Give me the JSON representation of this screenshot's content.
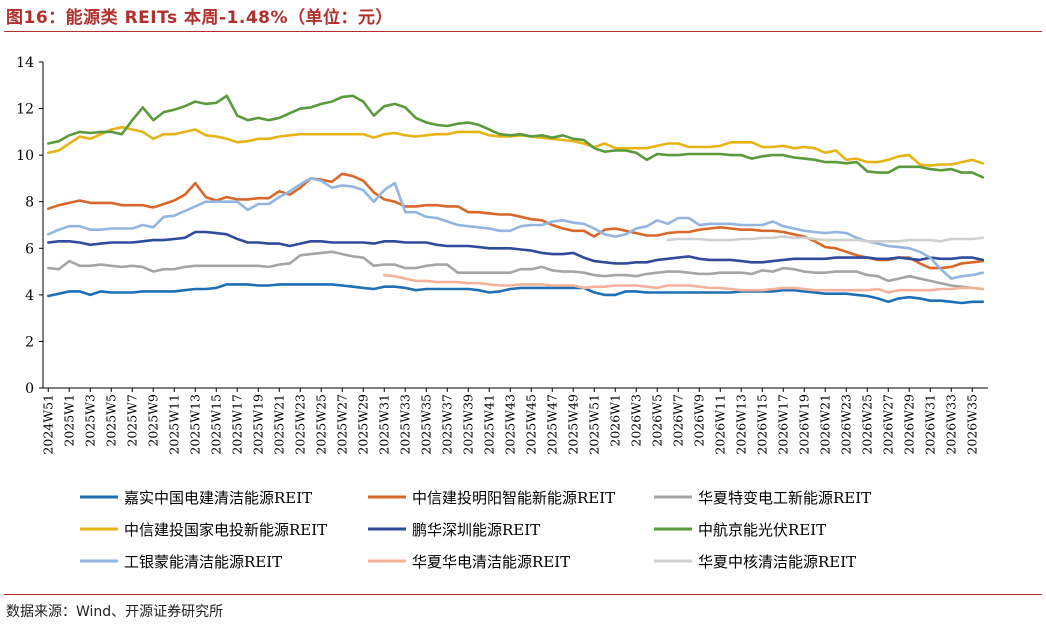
{
  "header": {
    "title": "图16：能源类 REITs 本周-1.48%（单位：元）"
  },
  "footer": {
    "source": "数据来源：Wind、开源证券研究所"
  },
  "chart_data": {
    "type": "line",
    "title": "",
    "xlabel": "",
    "ylabel": "",
    "ylim": [
      0,
      14
    ],
    "yticks": [
      0,
      2,
      4,
      6,
      8,
      10,
      12,
      14
    ],
    "grid": false,
    "legend_position": "bottom",
    "x": [
      "2024W51",
      "2024W52",
      "2025W1",
      "2025W2",
      "2025W3",
      "2025W4",
      "2025W5",
      "2025W6",
      "2025W7",
      "2025W8",
      "2025W9",
      "2025W10",
      "2025W11",
      "2025W12",
      "2025W13",
      "2025W14",
      "2025W15",
      "2025W16",
      "2025W17",
      "2025W18",
      "2025W19",
      "2025W20",
      "2025W21",
      "2025W22",
      "2025W23",
      "2025W24",
      "2025W25",
      "2025W26",
      "2025W27",
      "2025W28",
      "2025W29",
      "2025W30",
      "2025W31",
      "2025W32",
      "2025W33",
      "2025W34",
      "2025W35",
      "2025W36",
      "2025W37",
      "2025W38",
      "2025W39",
      "2025W40",
      "2025W41",
      "2025W42",
      "2025W43",
      "2025W44",
      "2025W45",
      "2025W46",
      "2025W47",
      "2025W48",
      "2025W49",
      "2025W50",
      "2025W51",
      "2025W52",
      "2026W1",
      "2026W2",
      "2026W3",
      "2026W4",
      "2026W5",
      "2026W6",
      "2026W7",
      "2026W8",
      "2026W9",
      "2026W10",
      "2026W11",
      "2026W12",
      "2026W13",
      "2026W14",
      "2026W15",
      "2026W16",
      "2026W17",
      "2026W18",
      "2026W19",
      "2026W20",
      "2026W21",
      "2026W22",
      "2026W23",
      "2026W24",
      "2026W25",
      "2026W26",
      "2026W27",
      "2026W28",
      "2026W29",
      "2026W30",
      "2026W31",
      "2026W32",
      "2026W33",
      "2026W34",
      "2026W35",
      "2026W36"
    ],
    "xtick_labels": [
      "2024W51",
      "2025W1",
      "2025W3",
      "2025W5",
      "2025W7",
      "2025W9",
      "2025W11",
      "2025W13",
      "2025W15",
      "2025W17",
      "2025W19",
      "2025W21",
      "2025W23",
      "2025W25",
      "2025W27",
      "2025W29",
      "2025W31",
      "2025W33",
      "2025W35",
      "2025W37",
      "2025W39",
      "2025W41",
      "2025W43",
      "2025W45",
      "2025W47",
      "2025W49",
      "2025W51",
      "2026W1",
      "2026W3",
      "2026W5",
      "2026W7",
      "2026W9",
      "2026W11",
      "2026W13",
      "2026W15",
      "2026W17",
      "2026W19",
      "2026W21",
      "2026W23",
      "2026W25",
      "2026W27",
      "2026W29",
      "2026W31",
      "2026W33",
      "2026W35"
    ],
    "series": [
      {
        "name": "嘉实中国电建清洁能源REIT",
        "color": "#1f6fb5",
        "values": [
          3.95,
          4.05,
          4.15,
          4.15,
          4.0,
          4.15,
          4.1,
          4.1,
          4.1,
          4.15,
          4.15,
          4.15,
          4.15,
          4.2,
          4.25,
          4.25,
          4.3,
          4.45,
          4.45,
          4.45,
          4.4,
          4.4,
          4.45,
          4.45,
          4.45,
          4.45,
          4.45,
          4.45,
          4.4,
          4.35,
          4.3,
          4.25,
          4.35,
          4.35,
          4.3,
          4.2,
          4.25,
          4.25,
          4.25,
          4.25,
          4.25,
          4.2,
          4.1,
          4.15,
          4.25,
          4.3,
          4.3,
          4.3,
          4.3,
          4.3,
          4.3,
          4.3,
          4.1,
          4.0,
          4.0,
          4.15,
          4.15,
          4.1,
          4.1,
          4.1,
          4.1,
          4.1,
          4.1,
          4.1,
          4.1,
          4.1,
          4.15,
          4.15,
          4.15,
          4.15,
          4.2,
          4.2,
          4.15,
          4.1,
          4.05,
          4.05,
          4.05,
          4.0,
          3.95,
          3.85,
          3.7,
          3.85,
          3.9,
          3.85,
          3.75,
          3.75,
          3.7,
          3.65,
          3.7,
          3.7
        ]
      },
      {
        "name": "中信建投明阳智能新能源REIT",
        "color": "#d9672a",
        "values": [
          7.7,
          7.85,
          7.95,
          8.05,
          7.95,
          7.95,
          7.95,
          7.85,
          7.85,
          7.85,
          7.75,
          7.9,
          8.05,
          8.3,
          8.8,
          8.2,
          8.05,
          8.2,
          8.1,
          8.1,
          8.15,
          8.15,
          8.45,
          8.3,
          8.6,
          9.0,
          8.95,
          8.85,
          9.2,
          9.1,
          8.9,
          8.4,
          8.1,
          8.0,
          7.8,
          7.8,
          7.85,
          7.85,
          7.8,
          7.8,
          7.55,
          7.55,
          7.5,
          7.45,
          7.45,
          7.35,
          7.25,
          7.2,
          7.0,
          6.85,
          6.75,
          6.75,
          6.5,
          6.8,
          6.85,
          6.75,
          6.65,
          6.55,
          6.55,
          6.65,
          6.7,
          6.7,
          6.8,
          6.85,
          6.9,
          6.85,
          6.8,
          6.8,
          6.75,
          6.75,
          6.7,
          6.6,
          6.5,
          6.3,
          6.05,
          6.0,
          5.85,
          5.7,
          5.6,
          5.5,
          5.5,
          5.6,
          5.6,
          5.35,
          5.15,
          5.15,
          5.2,
          5.35,
          5.4,
          5.45
        ]
      },
      {
        "name": "华夏特变电工新能源REIT",
        "color": "#a5a5a5",
        "values": [
          5.15,
          5.1,
          5.45,
          5.25,
          5.25,
          5.3,
          5.25,
          5.2,
          5.25,
          5.2,
          5.0,
          5.1,
          5.1,
          5.2,
          5.25,
          5.25,
          5.25,
          5.25,
          5.25,
          5.25,
          5.25,
          5.2,
          5.3,
          5.35,
          5.7,
          5.75,
          5.8,
          5.85,
          5.75,
          5.65,
          5.6,
          5.25,
          5.3,
          5.3,
          5.15,
          5.15,
          5.25,
          5.3,
          5.3,
          4.95,
          4.95,
          4.95,
          4.95,
          4.95,
          4.95,
          5.1,
          5.1,
          5.2,
          5.05,
          5.0,
          5.0,
          4.95,
          4.85,
          4.8,
          4.85,
          4.85,
          4.8,
          4.9,
          4.95,
          5.0,
          5.0,
          4.95,
          4.9,
          4.9,
          4.95,
          4.95,
          4.95,
          4.9,
          5.05,
          5.0,
          5.15,
          5.1,
          5.0,
          4.95,
          4.95,
          5.0,
          5.0,
          5.0,
          4.85,
          4.8,
          4.6,
          4.7,
          4.8,
          4.7,
          4.6,
          4.5,
          4.4,
          4.35,
          4.3,
          4.25
        ]
      },
      {
        "name": "中信建投国家电投新能源REIT",
        "color": "#e7b416",
        "values": [
          10.1,
          10.2,
          10.5,
          10.8,
          10.7,
          10.9,
          11.1,
          11.2,
          11.1,
          11.0,
          10.7,
          10.9,
          10.9,
          11.0,
          11.1,
          10.85,
          10.8,
          10.7,
          10.55,
          10.6,
          10.7,
          10.7,
          10.8,
          10.85,
          10.9,
          10.9,
          10.9,
          10.9,
          10.9,
          10.9,
          10.9,
          10.75,
          10.9,
          10.95,
          10.85,
          10.8,
          10.85,
          10.9,
          10.9,
          11.0,
          11.0,
          11.0,
          10.85,
          10.8,
          10.8,
          10.85,
          10.8,
          10.75,
          10.7,
          10.65,
          10.6,
          10.5,
          10.35,
          10.5,
          10.3,
          10.3,
          10.3,
          10.3,
          10.4,
          10.5,
          10.5,
          10.35,
          10.35,
          10.35,
          10.4,
          10.55,
          10.55,
          10.55,
          10.35,
          10.35,
          10.4,
          10.3,
          10.35,
          10.3,
          10.1,
          10.2,
          9.8,
          9.85,
          9.7,
          9.7,
          9.8,
          9.95,
          10.0,
          9.6,
          9.55,
          9.6,
          9.6,
          9.7,
          9.8,
          9.65
        ]
      },
      {
        "name": "鹏华深圳能源REIT",
        "color": "#2f4b9b",
        "values": [
          6.25,
          6.3,
          6.3,
          6.25,
          6.15,
          6.2,
          6.25,
          6.25,
          6.25,
          6.3,
          6.35,
          6.35,
          6.4,
          6.45,
          6.7,
          6.7,
          6.65,
          6.6,
          6.4,
          6.25,
          6.25,
          6.2,
          6.2,
          6.1,
          6.2,
          6.3,
          6.3,
          6.25,
          6.25,
          6.25,
          6.25,
          6.2,
          6.3,
          6.3,
          6.25,
          6.25,
          6.25,
          6.15,
          6.1,
          6.1,
          6.1,
          6.05,
          6.0,
          6.0,
          6.0,
          5.95,
          5.9,
          5.8,
          5.75,
          5.75,
          5.8,
          5.6,
          5.45,
          5.4,
          5.35,
          5.35,
          5.4,
          5.4,
          5.5,
          5.55,
          5.6,
          5.65,
          5.55,
          5.5,
          5.5,
          5.5,
          5.45,
          5.4,
          5.4,
          5.45,
          5.5,
          5.55,
          5.55,
          5.55,
          5.55,
          5.6,
          5.6,
          5.6,
          5.6,
          5.55,
          5.55,
          5.6,
          5.55,
          5.5,
          5.6,
          5.55,
          5.55,
          5.6,
          5.6,
          5.5
        ]
      },
      {
        "name": "中航京能光伏REIT",
        "color": "#5a9a3c",
        "values": [
          10.5,
          10.6,
          10.85,
          11.0,
          10.95,
          11.0,
          11.0,
          10.9,
          11.5,
          12.05,
          11.5,
          11.85,
          11.95,
          12.1,
          12.3,
          12.2,
          12.25,
          12.55,
          11.7,
          11.5,
          11.6,
          11.5,
          11.6,
          11.8,
          12.0,
          12.05,
          12.2,
          12.3,
          12.5,
          12.55,
          12.3,
          11.7,
          12.1,
          12.2,
          12.05,
          11.6,
          11.4,
          11.3,
          11.25,
          11.35,
          11.4,
          11.3,
          11.1,
          10.9,
          10.85,
          10.9,
          10.8,
          10.85,
          10.75,
          10.85,
          10.7,
          10.65,
          10.3,
          10.15,
          10.2,
          10.2,
          10.1,
          9.8,
          10.05,
          10.0,
          10.0,
          10.05,
          10.05,
          10.05,
          10.05,
          10.0,
          10.0,
          9.85,
          9.95,
          10.0,
          10.0,
          9.9,
          9.85,
          9.8,
          9.7,
          9.7,
          9.65,
          9.7,
          9.3,
          9.25,
          9.25,
          9.5,
          9.5,
          9.5,
          9.4,
          9.35,
          9.4,
          9.25,
          9.25,
          9.05
        ]
      },
      {
        "name": "工银蒙能清洁能源REIT",
        "color": "#92b6e0",
        "values": [
          6.6,
          6.8,
          6.95,
          6.95,
          6.8,
          6.8,
          6.85,
          6.85,
          6.85,
          7.0,
          6.9,
          7.35,
          7.4,
          7.6,
          7.8,
          8.0,
          8.0,
          8.0,
          8.0,
          7.65,
          7.9,
          7.9,
          8.2,
          8.45,
          8.75,
          9.0,
          8.9,
          8.6,
          8.7,
          8.65,
          8.5,
          8.0,
          8.5,
          8.8,
          7.55,
          7.55,
          7.35,
          7.3,
          7.15,
          7.0,
          6.95,
          6.9,
          6.85,
          6.75,
          6.75,
          6.95,
          7.0,
          7.0,
          7.15,
          7.2,
          7.1,
          7.05,
          6.85,
          6.6,
          6.5,
          6.6,
          6.85,
          6.95,
          7.2,
          7.05,
          7.3,
          7.3,
          7.0,
          7.05,
          7.05,
          7.05,
          7.0,
          7.0,
          7.0,
          7.15,
          6.95,
          6.85,
          6.75,
          6.7,
          6.65,
          6.7,
          6.65,
          6.45,
          6.3,
          6.2,
          6.1,
          6.05,
          6.0,
          5.85,
          5.6,
          5.1,
          4.7,
          4.8,
          4.85,
          4.95
        ]
      },
      {
        "name": "华夏华电清洁能源REIT",
        "color": "#f4b29a",
        "values": [
          null,
          null,
          null,
          null,
          null,
          null,
          null,
          null,
          null,
          null,
          null,
          null,
          null,
          null,
          null,
          null,
          null,
          null,
          null,
          null,
          null,
          null,
          null,
          null,
          null,
          null,
          null,
          null,
          null,
          null,
          null,
          null,
          4.85,
          4.8,
          4.7,
          4.6,
          4.6,
          4.55,
          4.55,
          4.55,
          4.5,
          4.5,
          4.45,
          4.4,
          4.4,
          4.45,
          4.45,
          4.45,
          4.4,
          4.4,
          4.4,
          4.3,
          4.35,
          4.35,
          4.4,
          4.4,
          4.4,
          4.35,
          4.3,
          4.4,
          4.4,
          4.4,
          4.35,
          4.3,
          4.3,
          4.25,
          4.2,
          4.2,
          4.2,
          4.25,
          4.3,
          4.3,
          4.25,
          4.2,
          4.2,
          4.2,
          4.2,
          4.2,
          4.2,
          4.25,
          4.1,
          4.2,
          4.2,
          4.2,
          4.2,
          4.25,
          4.25,
          4.3,
          4.3,
          4.25
        ]
      },
      {
        "name": "华夏中核清洁能源REIT",
        "color": "#d0d0d0",
        "values": [
          null,
          null,
          null,
          null,
          null,
          null,
          null,
          null,
          null,
          null,
          null,
          null,
          null,
          null,
          null,
          null,
          null,
          null,
          null,
          null,
          null,
          null,
          null,
          null,
          null,
          null,
          null,
          null,
          null,
          null,
          null,
          null,
          null,
          null,
          null,
          null,
          null,
          null,
          null,
          null,
          null,
          null,
          null,
          null,
          null,
          null,
          null,
          null,
          null,
          null,
          null,
          null,
          null,
          null,
          null,
          null,
          null,
          null,
          null,
          6.35,
          6.4,
          6.4,
          6.4,
          6.35,
          6.35,
          6.35,
          6.4,
          6.4,
          6.45,
          6.45,
          6.5,
          6.45,
          6.45,
          6.4,
          6.35,
          6.35,
          6.35,
          6.35,
          6.3,
          6.3,
          6.3,
          6.3,
          6.35,
          6.35,
          6.35,
          6.3,
          6.4,
          6.4,
          6.4,
          6.45
        ]
      }
    ]
  }
}
